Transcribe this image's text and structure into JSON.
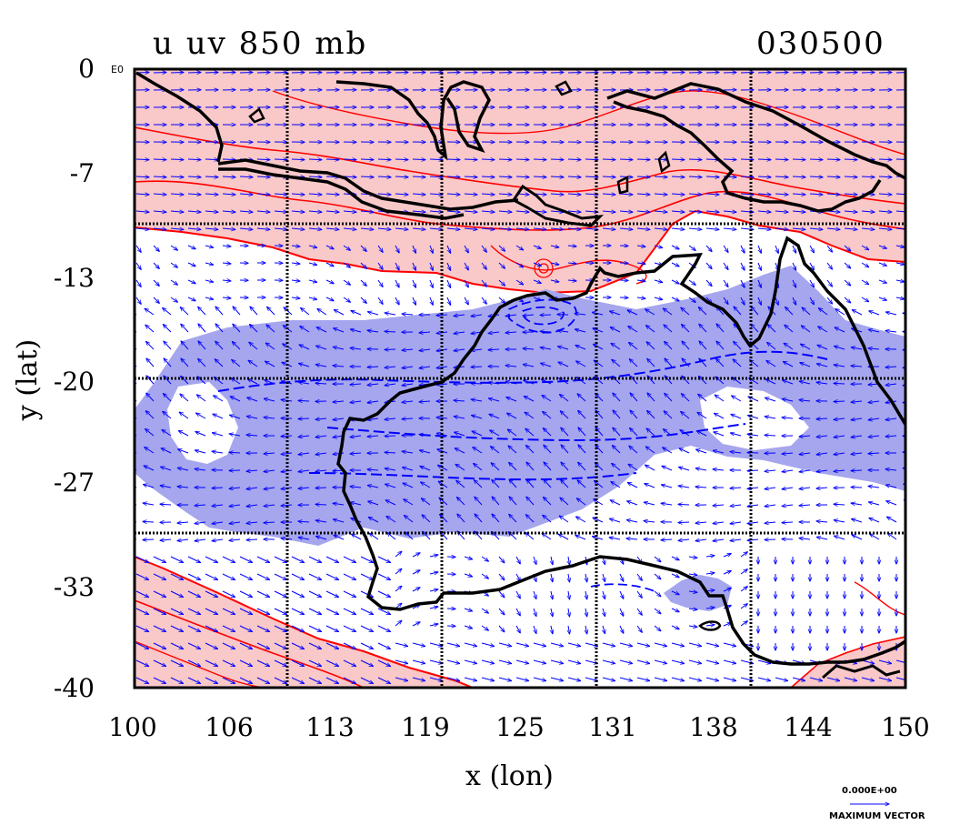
{
  "header": {
    "title_left": "u uv 850 mb",
    "title_right": "030500"
  },
  "axes": {
    "xlabel": "x (lon)",
    "ylabel": "y (lat)",
    "x_ticks": [
      "100",
      "106",
      "113",
      "119",
      "125",
      "131",
      "138",
      "144",
      "150"
    ],
    "y_ticks": [
      "0",
      "-7",
      "-13",
      "-20",
      "-27",
      "-33",
      "-40"
    ],
    "y_top_suffix": "E0",
    "x_range": [
      100,
      150
    ],
    "y_range": [
      -40,
      0
    ]
  },
  "legend": {
    "value_label": "0.000E+00",
    "caption": "MAXIMUM VECTOR"
  },
  "colors": {
    "positive_fill": "#f9c8c8",
    "positive_contour": "#ff0000",
    "negative_fill": "#a6a6ee",
    "negative_contour": "#0000ff",
    "vectors": "#0000ff",
    "coast": "#000000"
  },
  "chart_data": {
    "type": "heatmap",
    "title": "u uv 850 mb",
    "xlabel": "x (lon)",
    "ylabel": "y (lat)",
    "xlim": [
      100,
      150
    ],
    "ylim": [
      -40,
      0
    ],
    "grid": true,
    "grid_lon": [
      110,
      120,
      130,
      140
    ],
    "grid_lat": [
      -10,
      -20,
      -30
    ],
    "regions": [
      {
        "sign": "positive",
        "area": "north of about -12 lat (maritime continent)"
      },
      {
        "sign": "negative",
        "area": "band about -16 to -30 lat over Australia"
      },
      {
        "sign": "positive",
        "area": "south-west corner below about -33 lat"
      }
    ]
  }
}
